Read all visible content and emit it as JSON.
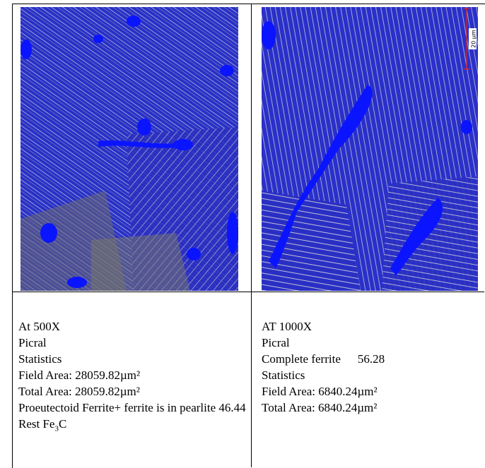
{
  "left": {
    "scale_label": null,
    "lines": [
      "At 500X",
      "Picral",
      "Statistics",
      "Field Area: 28059.82µm²",
      "Total Area: 28059.82µm²",
      "Proeutectoid Ferrite+ ferrite is in pearlite 46.44"
    ],
    "formula_line": {
      "text": "Rest Fe",
      "sub": "3",
      "tail": "C"
    }
  },
  "right": {
    "scale_label": "20 µm",
    "lines": [
      "AT 1000X",
      "Picral"
    ],
    "result": {
      "label": "Complete ferrite",
      "value": "56.28"
    },
    "more_lines": [
      "Statistics",
      "Field Area: 6840.24µm²",
      "Total Area: 6840.24µm²"
    ]
  }
}
